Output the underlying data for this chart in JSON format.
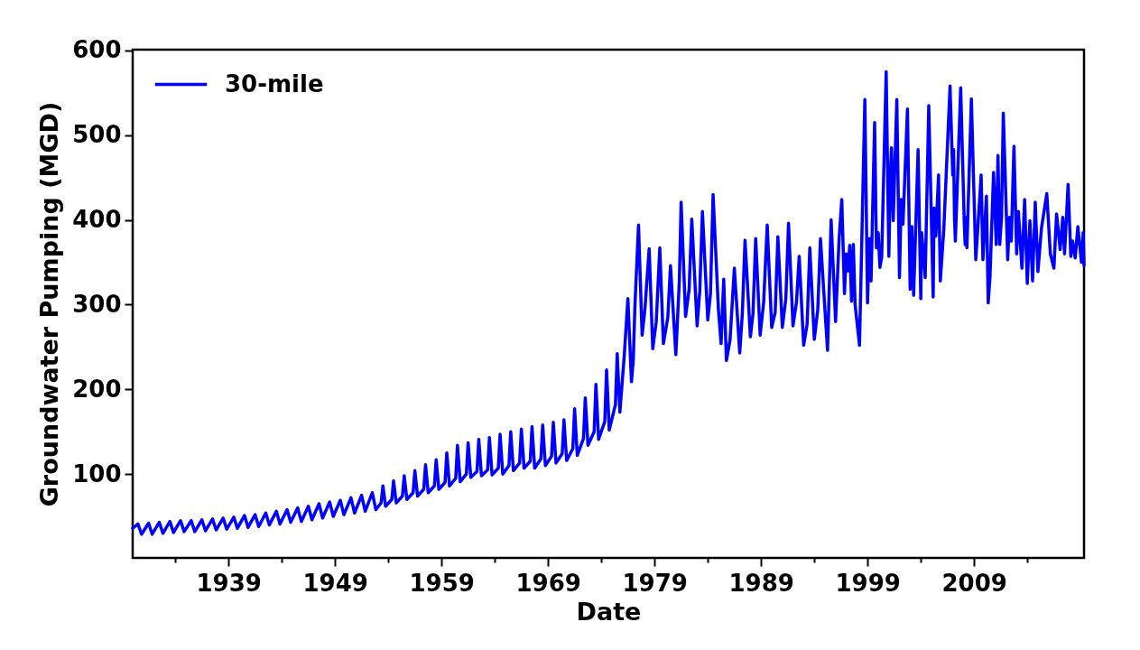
{
  "chart_data": {
    "type": "line",
    "xlabel": "Date",
    "ylabel": "Groundwater Pumping (MGD)",
    "xlim": [
      "1930-01",
      "2019-05"
    ],
    "ylim": [
      1,
      601
    ],
    "xticks": [
      {
        "value": "1934",
        "label": null
      },
      "1939",
      {
        "value": "1944",
        "label": null
      },
      "1949",
      {
        "value": "1954",
        "label": null
      },
      "1959",
      {
        "value": "1964",
        "label": null
      },
      "1969",
      {
        "value": "1974",
        "label": null
      },
      "1979",
      {
        "value": "1984",
        "label": null
      },
      "1989",
      {
        "value": "1994",
        "label": null
      },
      "1999",
      {
        "value": "2004",
        "label": null
      },
      "2009",
      {
        "value": "2014",
        "label": null
      }
    ],
    "yticks": [
      100,
      200,
      300,
      400,
      500,
      600
    ],
    "legend": "top left",
    "line_style": "solid",
    "x": [
      "1930-01",
      "1930-07",
      "1930-11",
      "1931-07",
      "1931-11",
      "1932-07",
      "1932-11",
      "1933-07",
      "1933-11",
      "1934-07",
      "1934-11",
      "1935-07",
      "1935-11",
      "1936-07",
      "1936-11",
      "1937-07",
      "1937-11",
      "1938-07",
      "1938-11",
      "1939-07",
      "1939-11",
      "1940-07",
      "1940-11",
      "1941-07",
      "1941-11",
      "1942-07",
      "1942-11",
      "1943-07",
      "1943-11",
      "1944-07",
      "1944-11",
      "1945-07",
      "1945-11",
      "1946-07",
      "1946-11",
      "1947-07",
      "1947-11",
      "1948-07",
      "1948-11",
      "1949-07",
      "1949-11",
      "1950-07",
      "1950-11",
      "1951-07",
      "1951-11",
      "1952-07",
      "1952-11",
      "1953-05",
      "1953-07",
      "1953-10",
      "1954-05",
      "1954-07",
      "1954-10",
      "1955-05",
      "1955-07",
      "1955-10",
      "1956-05",
      "1956-07",
      "1956-10",
      "1957-05",
      "1957-07",
      "1957-10",
      "1958-05",
      "1958-07",
      "1958-10",
      "1959-05",
      "1959-07",
      "1959-10",
      "1960-05",
      "1960-07",
      "1960-10",
      "1961-05",
      "1961-07",
      "1961-10",
      "1962-05",
      "1962-07",
      "1962-10",
      "1963-05",
      "1963-07",
      "1963-10",
      "1964-05",
      "1964-07",
      "1964-10",
      "1965-05",
      "1965-07",
      "1965-10",
      "1966-05",
      "1966-07",
      "1966-10",
      "1967-05",
      "1967-07",
      "1967-10",
      "1968-05",
      "1968-07",
      "1968-10",
      "1969-05",
      "1969-07",
      "1969-10",
      "1970-05",
      "1970-07",
      "1970-10",
      "1971-05",
      "1971-07",
      "1971-10",
      "1972-05",
      "1972-07",
      "1972-10",
      "1973-05",
      "1973-07",
      "1973-10",
      "1974-05",
      "1974-07",
      "1974-10",
      "1975-05",
      "1975-07",
      "1975-10",
      "1976-03",
      "1976-07",
      "1976-11",
      "1977-01",
      "1977-03",
      "1977-07",
      "1977-11",
      "1978-02",
      "1978-07",
      "1978-11",
      "1979-03",
      "1979-07",
      "1979-11",
      "1980-04",
      "1980-07",
      "1981-01",
      "1981-05",
      "1981-07",
      "1981-12",
      "1982-04",
      "1982-07",
      "1983-01",
      "1983-04",
      "1983-07",
      "1984-01",
      "1984-04",
      "1984-07",
      "1985-01",
      "1985-04",
      "1985-07",
      "1985-10",
      "1986-02",
      "1986-07",
      "1987-01",
      "1987-04",
      "1987-07",
      "1988-01",
      "1988-04",
      "1988-07",
      "1988-12",
      "1989-04",
      "1989-08",
      "1990-01",
      "1990-05",
      "1990-08",
      "1991-01",
      "1991-05",
      "1991-08",
      "1992-01",
      "1992-05",
      "1992-08",
      "1993-01",
      "1993-05",
      "1993-08",
      "1994-01",
      "1994-05",
      "1994-08",
      "1995-01",
      "1995-04",
      "1995-08",
      "1996-01",
      "1996-05",
      "1996-08",
      "1996-11",
      "1997-01",
      "1997-03",
      "1997-05",
      "1997-07",
      "1997-09",
      "1997-11",
      "1998-04",
      "1998-10",
      "1999-01",
      "1999-03",
      "1999-05",
      "1999-09",
      "1999-11",
      "2000-01",
      "2000-03",
      "2000-05",
      "2000-10",
      "2001-01",
      "2001-03",
      "2001-04",
      "2001-06",
      "2001-10",
      "2002-01",
      "2002-03",
      "2002-05",
      "2002-10",
      "2003-01",
      "2003-03",
      "2003-05",
      "2003-10",
      "2004-01",
      "2004-02",
      "2004-06",
      "2004-10",
      "2005-03",
      "2005-04",
      "2005-06",
      "2005-09",
      "2005-11",
      "2006-03",
      "2006-10",
      "2007-01",
      "2007-02",
      "2007-03",
      "2007-04",
      "2007-10",
      "2008-02",
      "2008-03",
      "2008-04",
      "2008-05",
      "2008-10",
      "2009-03",
      "2009-05",
      "2009-09",
      "2009-11",
      "2010-03",
      "2010-05",
      "2010-07",
      "2010-11",
      "2011-02",
      "2011-04",
      "2011-06",
      "2011-08",
      "2011-10",
      "2012-03",
      "2012-05",
      "2012-07",
      "2012-10",
      "2013-01",
      "2013-03",
      "2013-07",
      "2013-10",
      "2014-01",
      "2014-04",
      "2014-07",
      "2014-10",
      "2015-01",
      "2015-05",
      "2015-11",
      "2016-03",
      "2016-07",
      "2016-10",
      "2017-02",
      "2017-05",
      "2017-07",
      "2017-11",
      "2018-02",
      "2018-04",
      "2018-07",
      "2018-10",
      "2019-02",
      "2019-04",
      "2019-05"
    ],
    "series": [
      {
        "name": "30-mile",
        "color": "#0000ff",
        "values": [
          36,
          41,
          29,
          42,
          29,
          43,
          30,
          44,
          31,
          45,
          32,
          45,
          32,
          46,
          33,
          47,
          34,
          48,
          35,
          49,
          36,
          51,
          37,
          52,
          38,
          54,
          40,
          56,
          41,
          58,
          43,
          60,
          44,
          62,
          46,
          65,
          48,
          67,
          50,
          69,
          52,
          72,
          54,
          75,
          56,
          78,
          58,
          66,
          86,
          62,
          70,
          92,
          66,
          74,
          98,
          70,
          78,
          104,
          74,
          82,
          111,
          78,
          86,
          117,
          82,
          90,
          125,
          86,
          95,
          134,
          91,
          100,
          137,
          96,
          103,
          141,
          98,
          105,
          143,
          99,
          107,
          147,
          100,
          110,
          150,
          104,
          113,
          153,
          107,
          115,
          156,
          107,
          118,
          158,
          110,
          121,
          161,
          113,
          124,
          164,
          116,
          130,
          177,
          122,
          142,
          190,
          134,
          150,
          206,
          141,
          162,
          223,
          152,
          182,
          242,
          173,
          241,
          307,
          209,
          234,
          300,
          394,
          264,
          293,
          366,
          248,
          280,
          367,
          254,
          285,
          346,
          241,
          328,
          421,
          286,
          318,
          401,
          275,
          316,
          410,
          282,
          312,
          430,
          294,
          254,
          330,
          234,
          258,
          343,
          243,
          290,
          376,
          262,
          290,
          378,
          264,
          303,
          394,
          273,
          291,
          380,
          273,
          307,
          396,
          275,
          303,
          357,
          252,
          277,
          367,
          259,
          294,
          378,
          294,
          246,
          400,
          280,
          378,
          424,
          313,
          360,
          340,
          370,
          304,
          371,
          300,
          252,
          542,
          302,
          378,
          328,
          515,
          367,
          385,
          344,
          356,
          575,
          357,
          460,
          485,
          399,
          542,
          332,
          424,
          395,
          531,
          318,
          392,
          311,
          483,
          307,
          385,
          332,
          535,
          309,
          414,
          381,
          453,
          328,
          389,
          558,
          453,
          483,
          403,
          375,
          556,
          396,
          371,
          403,
          367,
          543,
          353,
          385,
          453,
          353,
          428,
          302,
          332,
          456,
          371,
          476,
          371,
          403,
          526,
          353,
          403,
          375,
          487,
          360,
          410,
          343,
          424,
          325,
          399,
          328,
          421,
          339,
          390,
          431,
          360,
          343,
          407,
          365,
          403,
          360,
          442,
          357,
          375,
          355,
          392,
          350,
          385,
          346
        ]
      }
    ]
  }
}
